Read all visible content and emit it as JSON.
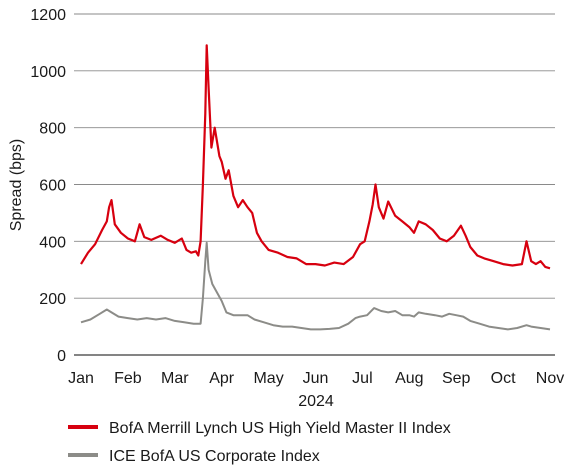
{
  "chart_data": {
    "type": "line",
    "title": "",
    "xlabel": "2024",
    "ylabel": "Spread (bps)",
    "ylim": [
      0,
      1200
    ],
    "yticks": [
      0,
      200,
      400,
      600,
      800,
      1000,
      1200
    ],
    "xticks": [
      "Jan",
      "Feb",
      "Mar",
      "Apr",
      "May",
      "Jun",
      "Jul",
      "Aug",
      "Sep",
      "Oct",
      "Nov"
    ],
    "grid": "horizontal",
    "legend_position": "bottom",
    "series": [
      {
        "name": "BofA Merrill Lynch US High Yield Master II Index",
        "color": "#d7000f",
        "values": [
          [
            0.0,
            320
          ],
          [
            0.15,
            360
          ],
          [
            0.3,
            390
          ],
          [
            0.45,
            440
          ],
          [
            0.55,
            470
          ],
          [
            0.6,
            520
          ],
          [
            0.65,
            545
          ],
          [
            0.72,
            460
          ],
          [
            0.85,
            430
          ],
          [
            1.0,
            410
          ],
          [
            1.15,
            400
          ],
          [
            1.25,
            460
          ],
          [
            1.35,
            415
          ],
          [
            1.5,
            405
          ],
          [
            1.7,
            420
          ],
          [
            1.85,
            405
          ],
          [
            2.0,
            395
          ],
          [
            2.15,
            410
          ],
          [
            2.25,
            370
          ],
          [
            2.35,
            360
          ],
          [
            2.45,
            365
          ],
          [
            2.5,
            350
          ],
          [
            2.55,
            400
          ],
          [
            2.6,
            600
          ],
          [
            2.65,
            850
          ],
          [
            2.68,
            1090
          ],
          [
            2.72,
            940
          ],
          [
            2.78,
            730
          ],
          [
            2.85,
            800
          ],
          [
            2.95,
            700
          ],
          [
            3.0,
            680
          ],
          [
            3.08,
            620
          ],
          [
            3.15,
            650
          ],
          [
            3.25,
            560
          ],
          [
            3.35,
            520
          ],
          [
            3.45,
            545
          ],
          [
            3.55,
            520
          ],
          [
            3.65,
            500
          ],
          [
            3.75,
            430
          ],
          [
            3.85,
            400
          ],
          [
            4.0,
            370
          ],
          [
            4.2,
            360
          ],
          [
            4.4,
            345
          ],
          [
            4.6,
            340
          ],
          [
            4.8,
            320
          ],
          [
            5.0,
            320
          ],
          [
            5.2,
            315
          ],
          [
            5.4,
            325
          ],
          [
            5.6,
            320
          ],
          [
            5.8,
            345
          ],
          [
            5.95,
            390
          ],
          [
            6.05,
            400
          ],
          [
            6.15,
            470
          ],
          [
            6.22,
            530
          ],
          [
            6.28,
            600
          ],
          [
            6.35,
            520
          ],
          [
            6.45,
            480
          ],
          [
            6.55,
            540
          ],
          [
            6.7,
            490
          ],
          [
            6.85,
            470
          ],
          [
            7.0,
            450
          ],
          [
            7.1,
            430
          ],
          [
            7.2,
            470
          ],
          [
            7.35,
            460
          ],
          [
            7.5,
            440
          ],
          [
            7.65,
            410
          ],
          [
            7.8,
            400
          ],
          [
            7.95,
            420
          ],
          [
            8.1,
            455
          ],
          [
            8.2,
            420
          ],
          [
            8.3,
            380
          ],
          [
            8.45,
            350
          ],
          [
            8.6,
            340
          ],
          [
            8.8,
            330
          ],
          [
            9.0,
            320
          ],
          [
            9.2,
            315
          ],
          [
            9.4,
            320
          ],
          [
            9.5,
            400
          ],
          [
            9.6,
            330
          ],
          [
            9.7,
            320
          ],
          [
            9.8,
            330
          ],
          [
            9.9,
            310
          ],
          [
            10.0,
            305
          ]
        ]
      },
      {
        "name": "ICE BofA US Corporate Index",
        "color": "#8c8c88",
        "values": [
          [
            0.0,
            115
          ],
          [
            0.2,
            125
          ],
          [
            0.4,
            145
          ],
          [
            0.55,
            160
          ],
          [
            0.65,
            150
          ],
          [
            0.8,
            135
          ],
          [
            1.0,
            130
          ],
          [
            1.2,
            125
          ],
          [
            1.4,
            130
          ],
          [
            1.6,
            125
          ],
          [
            1.8,
            130
          ],
          [
            2.0,
            120
          ],
          [
            2.2,
            115
          ],
          [
            2.4,
            110
          ],
          [
            2.55,
            110
          ],
          [
            2.6,
            200
          ],
          [
            2.65,
            330
          ],
          [
            2.68,
            395
          ],
          [
            2.72,
            300
          ],
          [
            2.8,
            250
          ],
          [
            2.9,
            220
          ],
          [
            3.0,
            190
          ],
          [
            3.1,
            150
          ],
          [
            3.25,
            140
          ],
          [
            3.4,
            140
          ],
          [
            3.55,
            140
          ],
          [
            3.7,
            125
          ],
          [
            3.9,
            115
          ],
          [
            4.1,
            105
          ],
          [
            4.3,
            100
          ],
          [
            4.5,
            100
          ],
          [
            4.7,
            95
          ],
          [
            4.9,
            90
          ],
          [
            5.1,
            90
          ],
          [
            5.3,
            92
          ],
          [
            5.5,
            95
          ],
          [
            5.7,
            110
          ],
          [
            5.85,
            130
          ],
          [
            5.95,
            135
          ],
          [
            6.1,
            140
          ],
          [
            6.25,
            165
          ],
          [
            6.4,
            155
          ],
          [
            6.55,
            150
          ],
          [
            6.7,
            155
          ],
          [
            6.85,
            140
          ],
          [
            7.0,
            140
          ],
          [
            7.1,
            135
          ],
          [
            7.2,
            150
          ],
          [
            7.35,
            145
          ],
          [
            7.55,
            140
          ],
          [
            7.7,
            135
          ],
          [
            7.85,
            145
          ],
          [
            8.0,
            140
          ],
          [
            8.15,
            135
          ],
          [
            8.3,
            120
          ],
          [
            8.5,
            110
          ],
          [
            8.7,
            100
          ],
          [
            8.9,
            95
          ],
          [
            9.1,
            90
          ],
          [
            9.3,
            95
          ],
          [
            9.5,
            105
          ],
          [
            9.6,
            100
          ],
          [
            9.8,
            95
          ],
          [
            10.0,
            90
          ]
        ]
      }
    ]
  }
}
